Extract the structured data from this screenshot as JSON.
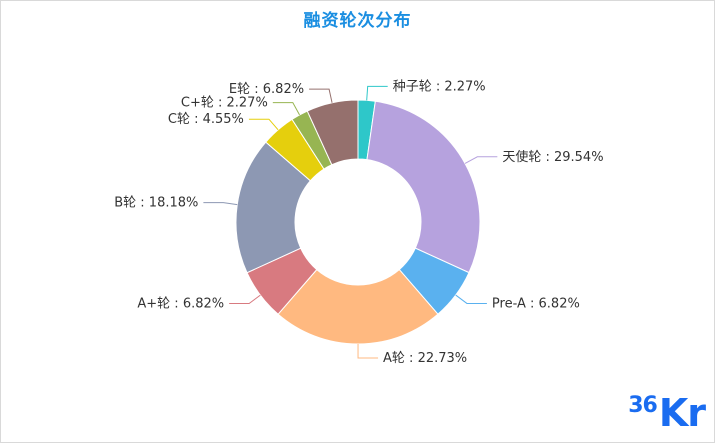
{
  "chart_data": {
    "type": "pie",
    "title": "融资轮次分布",
    "title_color": "#1a8ee1",
    "donut": true,
    "start_angle_deg": 90,
    "direction": "clockwise",
    "legend": "none",
    "slices": [
      {
        "name": "种子轮",
        "value": 2.27,
        "label": "种子轮 : 2.27%",
        "color": "#2ec7c9"
      },
      {
        "name": "天使轮",
        "value": 29.54,
        "label": "天使轮 : 29.54%",
        "color": "#b6a2de"
      },
      {
        "name": "Pre-A",
        "value": 6.82,
        "label": "Pre-A : 6.82%",
        "color": "#5ab1ef"
      },
      {
        "name": "A轮",
        "value": 22.73,
        "label": "A轮 : 22.73%",
        "color": "#ffb980"
      },
      {
        "name": "A+轮",
        "value": 6.82,
        "label": "A+轮 : 6.82%",
        "color": "#d87a80"
      },
      {
        "name": "B轮",
        "value": 18.18,
        "label": "B轮 : 18.18%",
        "color": "#8d98b3"
      },
      {
        "name": "C轮",
        "value": 4.55,
        "label": "C轮 : 4.55%",
        "color": "#e5cf0d"
      },
      {
        "name": "C+轮",
        "value": 2.27,
        "label": "C+轮 : 2.27%",
        "color": "#97b552"
      },
      {
        "name": "E轮",
        "value": 6.82,
        "label": "E轮 : 6.82%",
        "color": "#95706d"
      }
    ]
  },
  "watermark": {
    "text": "Kr",
    "number": "36",
    "color": "#1a6cf0"
  }
}
